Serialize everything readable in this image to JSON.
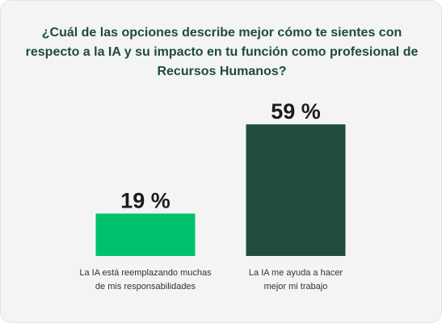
{
  "chart_data": {
    "type": "bar",
    "title": "¿Cuál de las opciones describe mejor cómo te sientes con respecto a la IA y su impacto en tu función como profesional de Recursos Humanos?",
    "categories": [
      "La IA está reemplazando muchas de mis responsabilidades",
      "La IA me ayuda a hacer mejor mi trabajo"
    ],
    "category_lines": [
      [
        "La IA está reemplazando muchas",
        "de mis responsabilidades"
      ],
      [
        "La IA me ayuda a hacer",
        "mejor mi trabajo"
      ]
    ],
    "values": [
      19,
      59
    ],
    "value_labels": [
      "19 %",
      "59 %"
    ],
    "colors": [
      "#00c16e",
      "#224d3d"
    ],
    "unit": "%",
    "ylim": [
      0,
      59
    ],
    "grid": false,
    "legend": "none"
  }
}
